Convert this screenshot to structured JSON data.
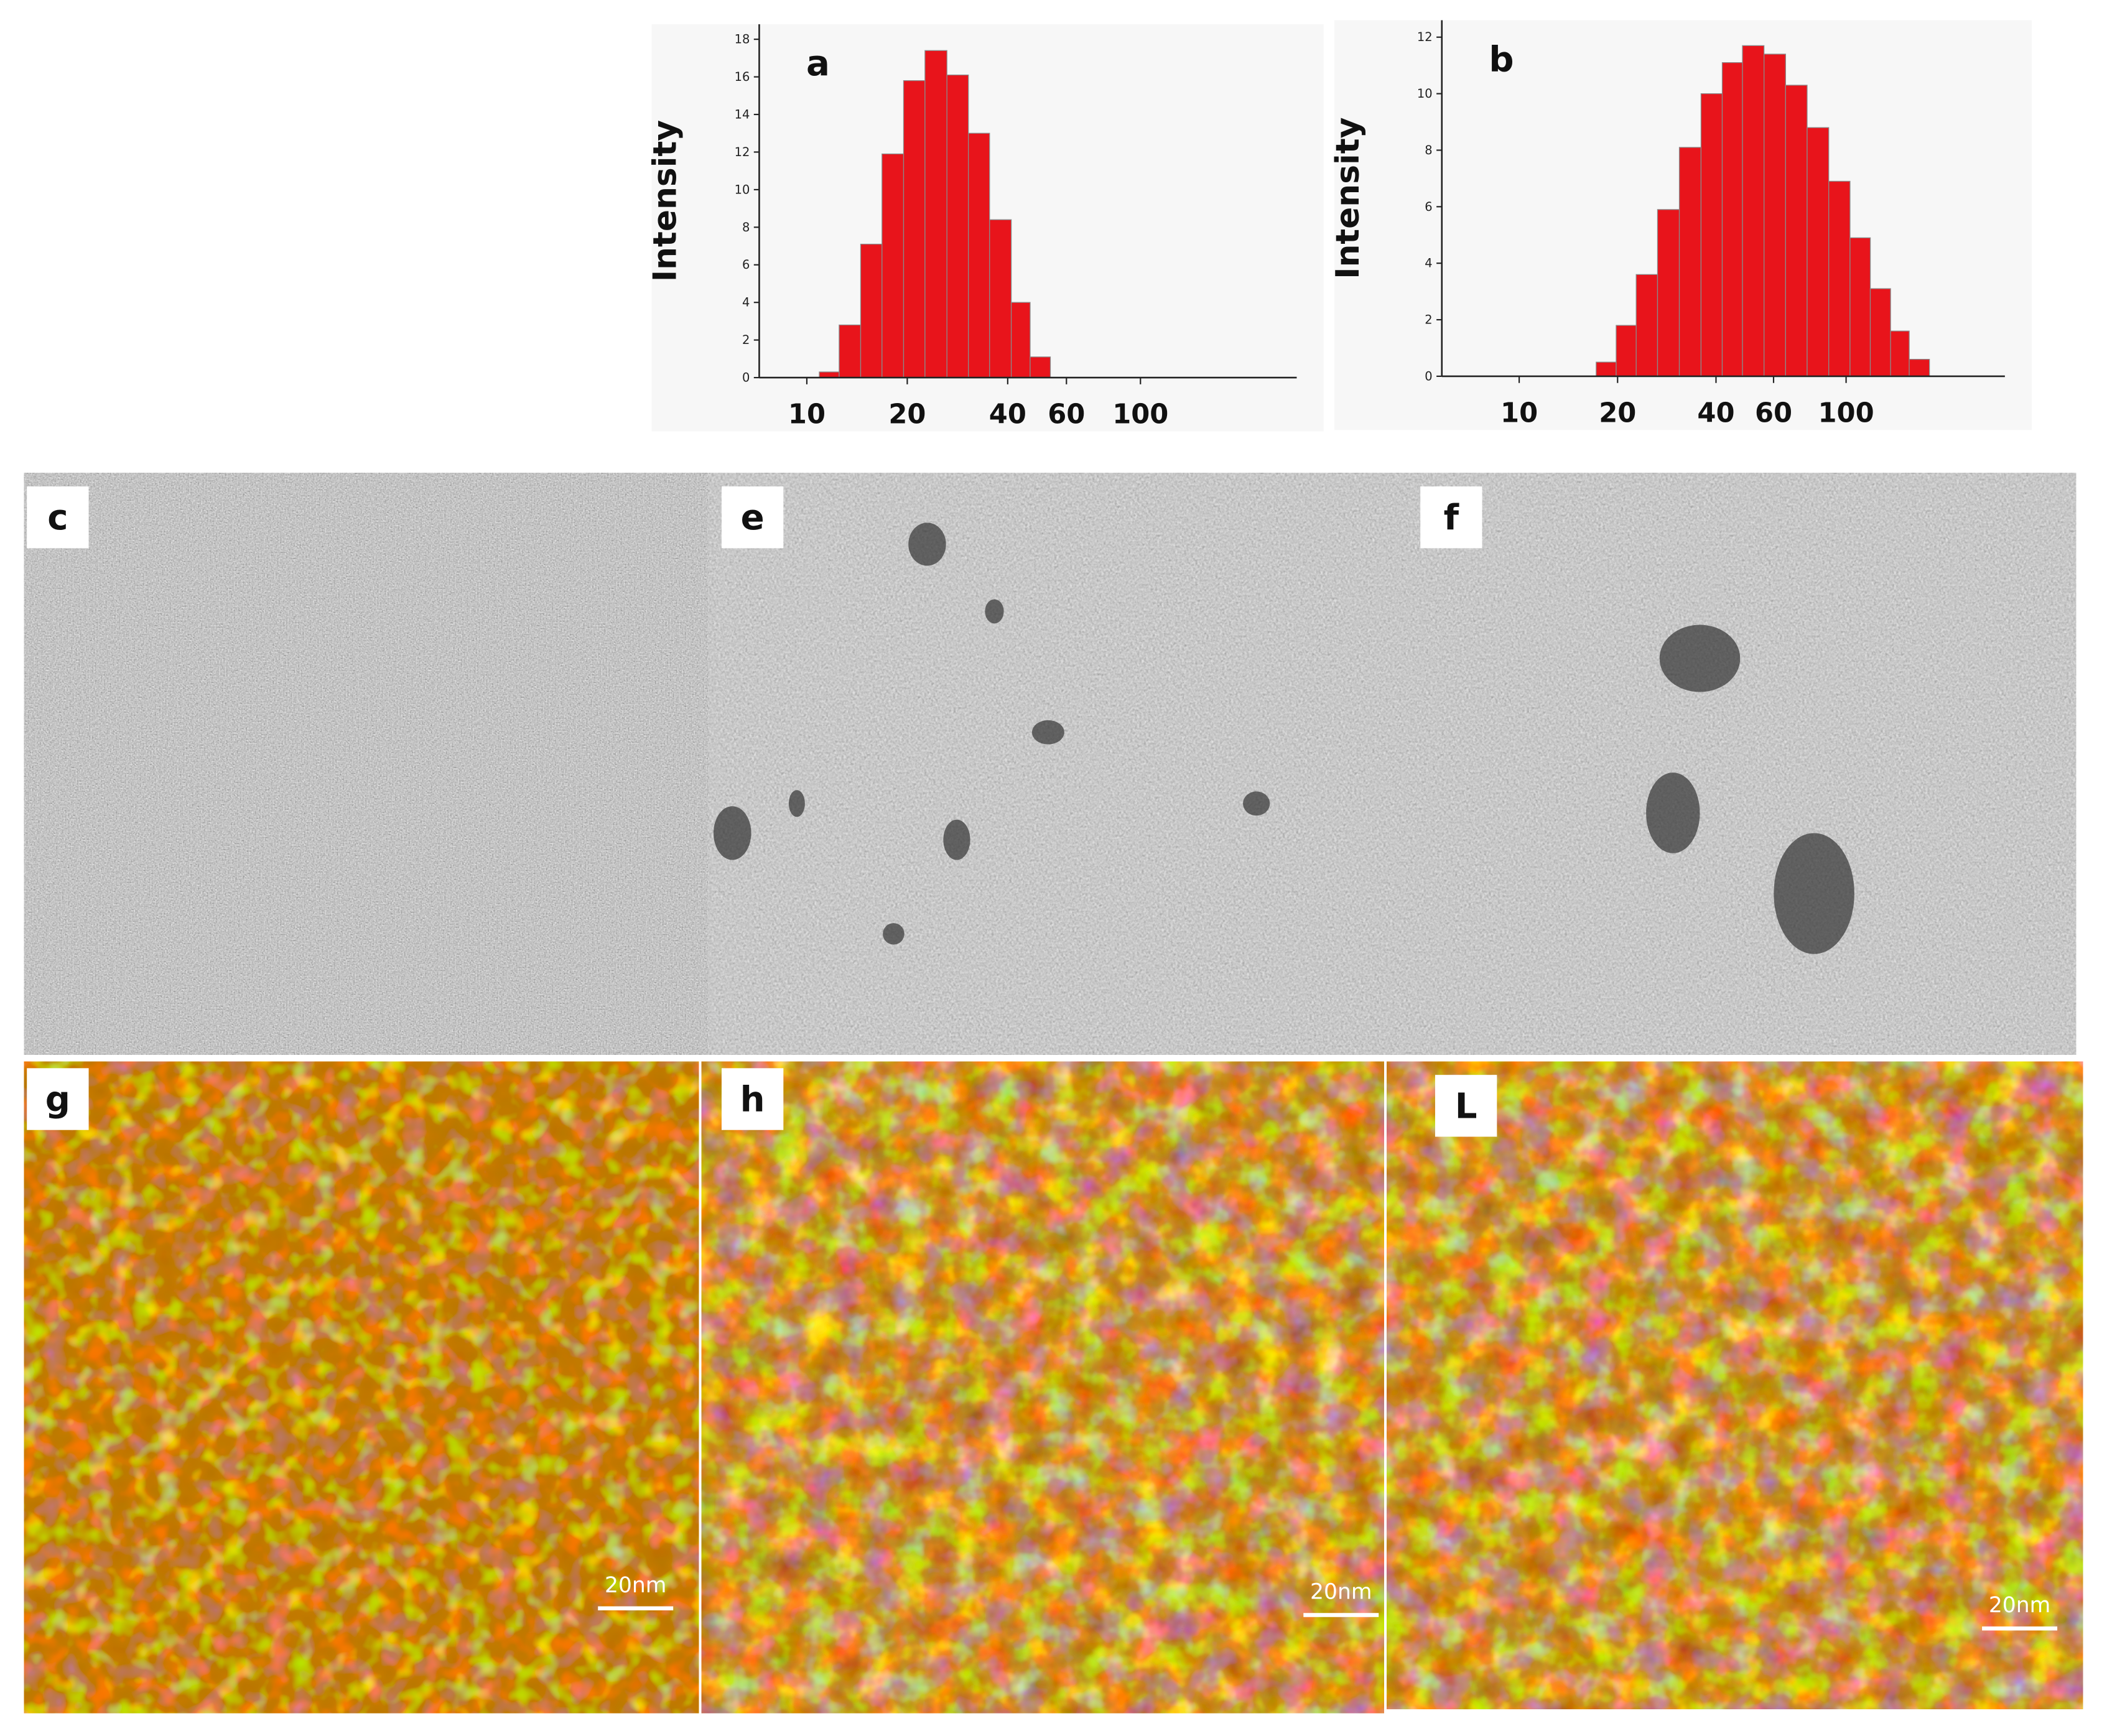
{
  "chart_data": [
    {
      "type": "histogram",
      "label": "a",
      "y_label": "Intensity",
      "bins": [
        10.9,
        12.5,
        14.5,
        16.8,
        19.5,
        22.6,
        26.3,
        30.5,
        35.3,
        41.0,
        46.7,
        53.7
      ],
      "values": [
        0.3,
        2.8,
        7.1,
        11.9,
        15.8,
        17.4,
        16.1,
        13,
        8.4,
        4,
        1.1
      ],
      "color": "#e8141b",
      "log_x": true,
      "xlim": [
        7.2,
        294
      ],
      "xticks": [
        10,
        20,
        40,
        60,
        100
      ],
      "ylim": [
        0,
        18.8
      ],
      "yticks": [
        0,
        2,
        4,
        6,
        8,
        10,
        12,
        14,
        16,
        18
      ]
    },
    {
      "type": "histogram",
      "label": "b",
      "y_label": "Intensity",
      "bins": [
        17.2,
        19.8,
        22.8,
        26.5,
        30.9,
        36.0,
        41.8,
        48.2,
        56.1,
        65.3,
        76.0,
        88.5,
        102.8,
        118.6,
        136.8,
        156.0,
        179.9
      ],
      "values": [
        0.5,
        1.8,
        3.6,
        5.9,
        8.1,
        10,
        11.1,
        11.7,
        11.4,
        10.3,
        8.8,
        6.9,
        4.9,
        3.1,
        1.6,
        0.6
      ],
      "color": "#e8141b",
      "log_x": true,
      "xlim": [
        5.8,
        306
      ],
      "xticks": [
        10,
        20,
        40,
        60,
        100
      ],
      "ylim": [
        0,
        12.6
      ],
      "yticks": [
        0,
        2,
        4,
        6,
        8,
        10,
        12
      ]
    }
  ],
  "panels": [
    {
      "label": "c"
    },
    {
      "label": "e"
    },
    {
      "label": "f"
    },
    {
      "label": "g",
      "scale_bar": "20nm"
    },
    {
      "label": "h",
      "scale_bar": "20nm"
    },
    {
      "label": "L",
      "scale_bar": "20nm"
    }
  ]
}
